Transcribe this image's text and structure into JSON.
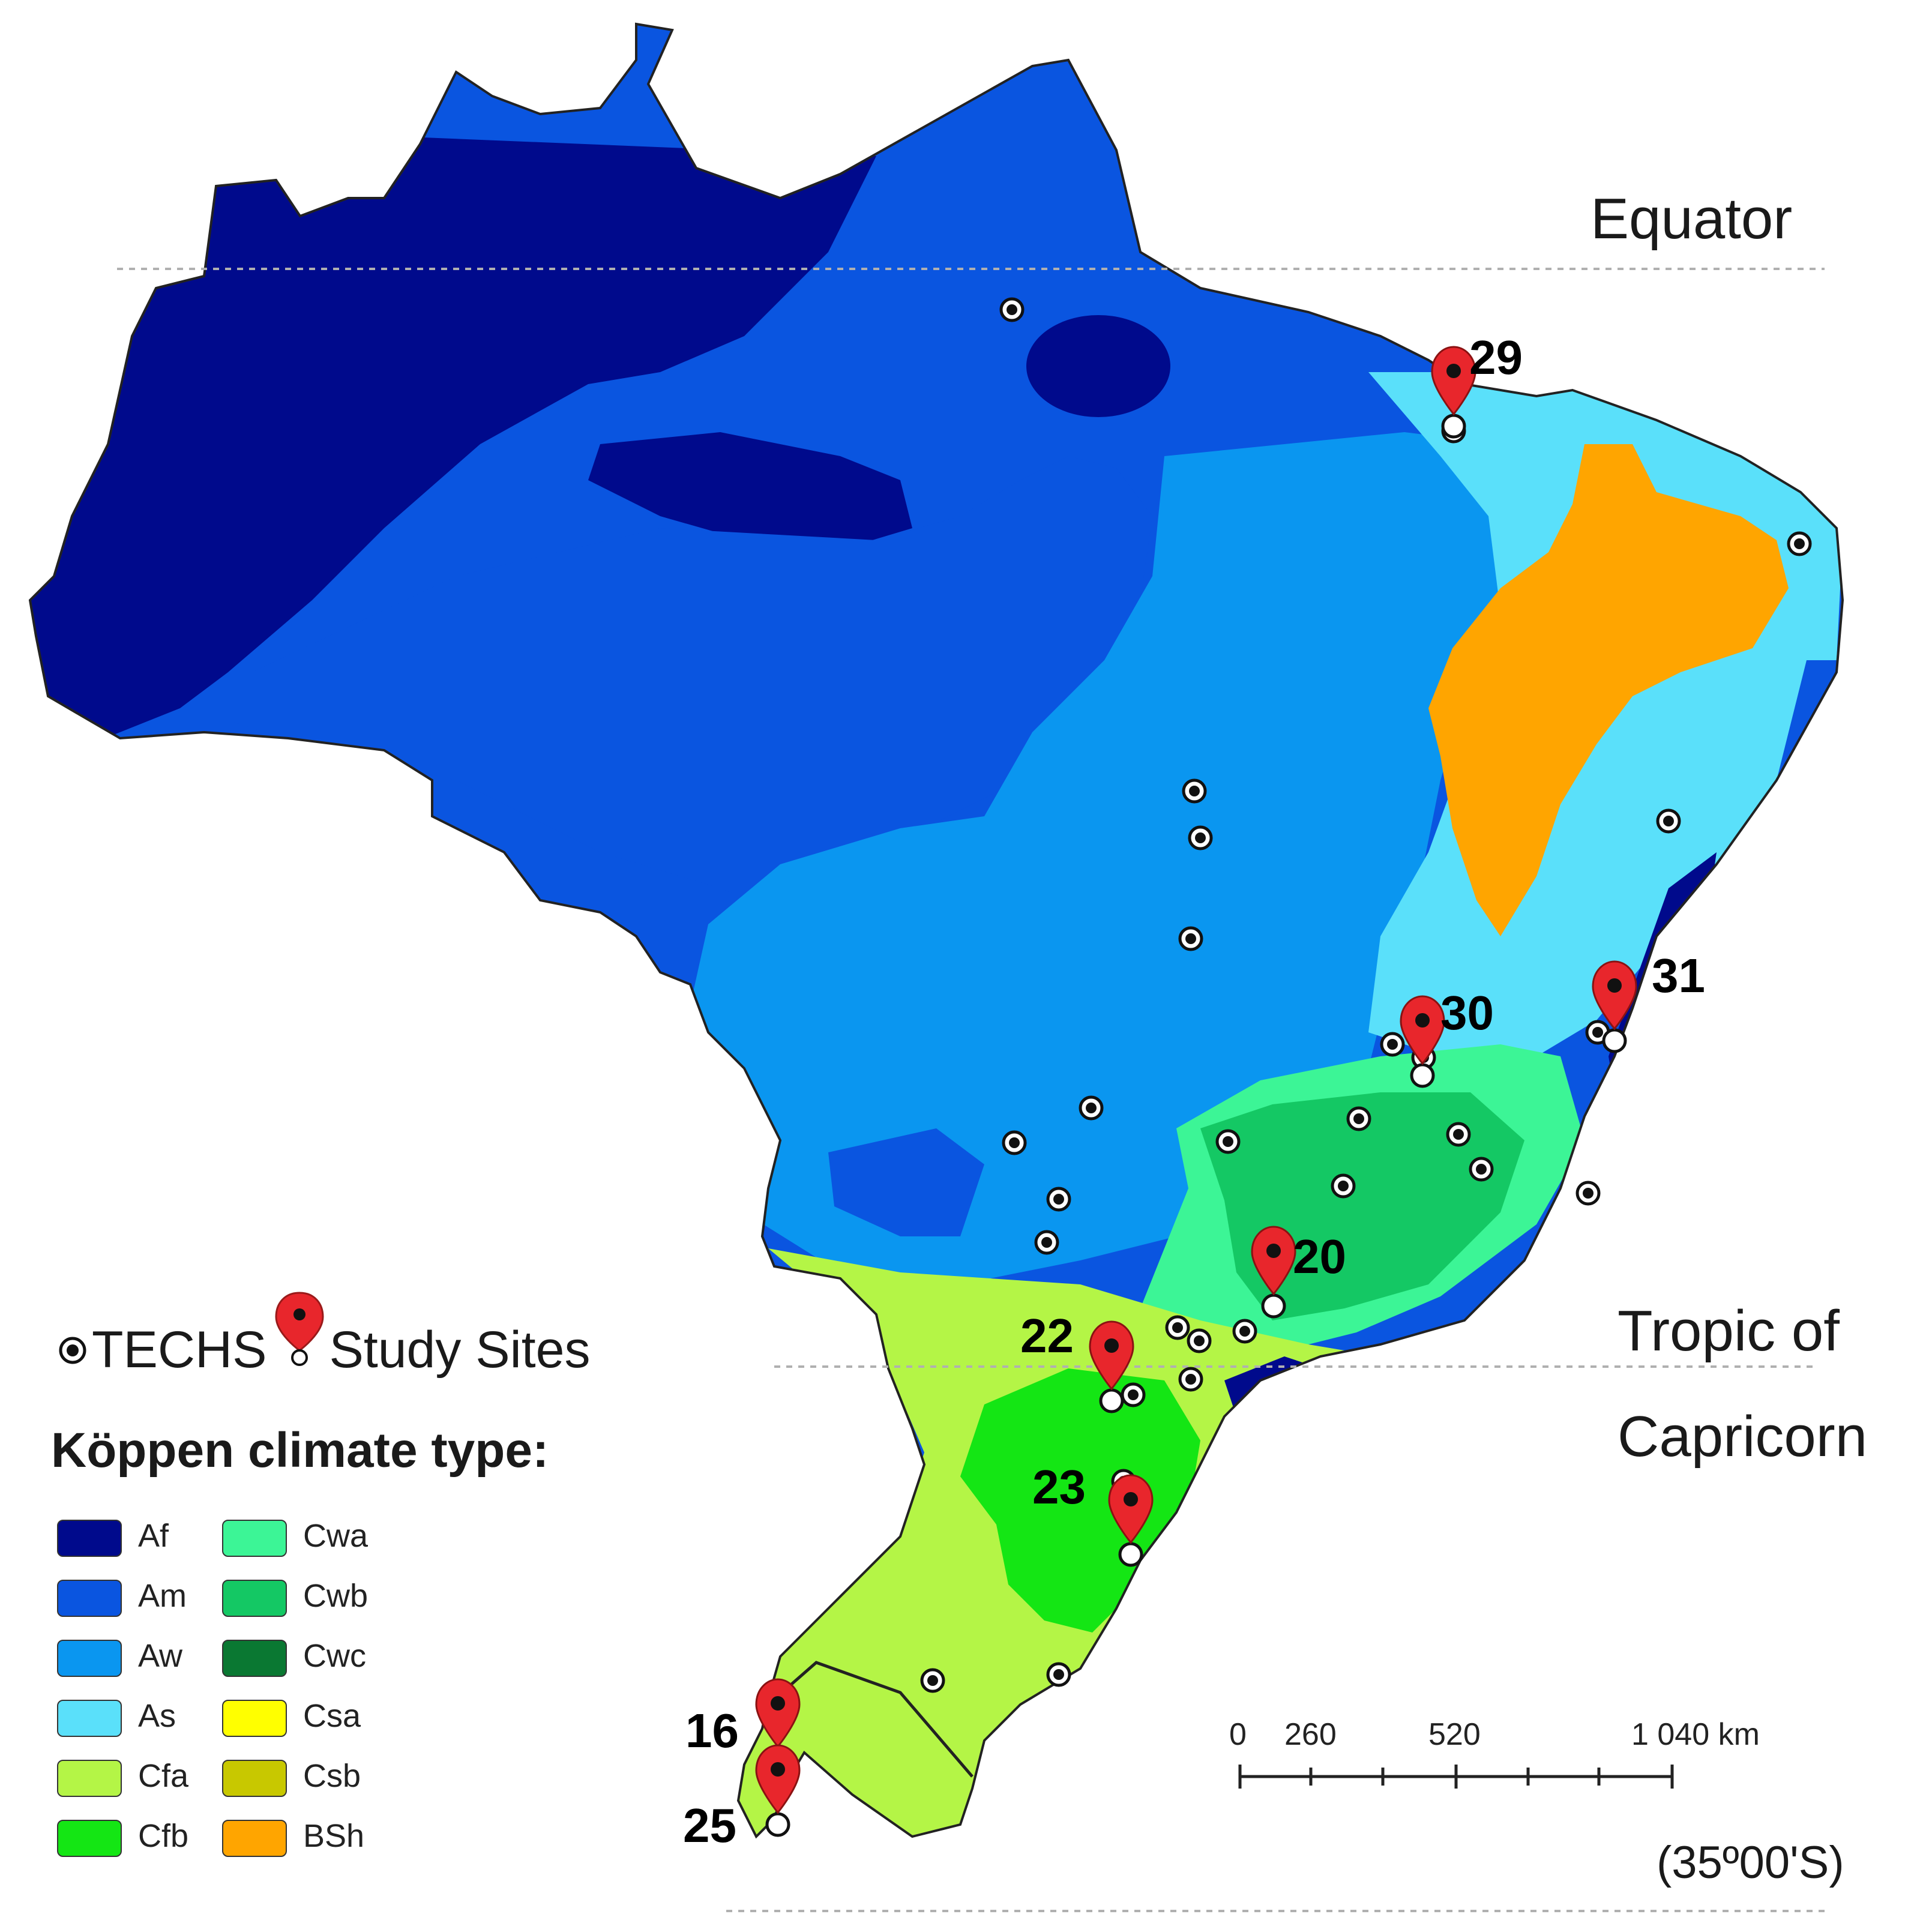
{
  "labels": {
    "equator": "Equator",
    "tropic_line1": "Tropic of",
    "tropic_line2": "Capricorn",
    "latitude": "(35º00'S)"
  },
  "legend": {
    "techs": "TECHS",
    "study_sites": "Study Sites",
    "title": "Köppen climate type:",
    "items": [
      {
        "code": "Af",
        "color": "#000a8c"
      },
      {
        "code": "Am",
        "color": "#0a55e0"
      },
      {
        "code": "Aw",
        "color": "#0a96f0"
      },
      {
        "code": "As",
        "color": "#5ae0fa"
      },
      {
        "code": "Cfa",
        "color": "#b4f546"
      },
      {
        "code": "Cfb",
        "color": "#14e614"
      },
      {
        "code": "Cwa",
        "color": "#3cf596"
      },
      {
        "code": "Cwb",
        "color": "#14c864"
      },
      {
        "code": "Cwc",
        "color": "#0a7832"
      },
      {
        "code": "Csa",
        "color": "#ffff00"
      },
      {
        "code": "Csb",
        "color": "#c8c800"
      },
      {
        "code": "BSh",
        "color": "#ffa500"
      }
    ]
  },
  "study_sites": [
    "29",
    "31",
    "30",
    "20",
    "22",
    "23",
    "16",
    "25"
  ],
  "scale": {
    "ticks": [
      "0",
      "260",
      "520",
      "1 040 km"
    ]
  },
  "icons": {
    "techs": "target-dot-icon",
    "study_site": "map-pin-icon"
  },
  "colors": {
    "pin": "#e8262c",
    "reference_line": "#b0b0b0"
  }
}
